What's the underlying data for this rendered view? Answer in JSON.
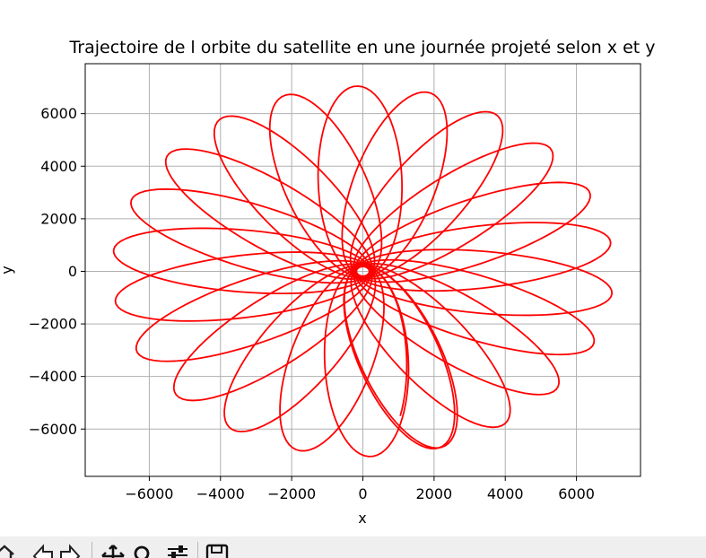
{
  "window": {
    "toolbar_icons": [
      "home-icon",
      "back-icon",
      "forward-icon",
      "pan-icon",
      "zoom-icon",
      "configure-subplots-icon",
      "save-icon"
    ]
  },
  "chart_data": {
    "type": "line",
    "title": "Trajectoire de l orbite du satellite en une journée projeté selon x et y",
    "xlabel": "x",
    "ylabel": "y",
    "xlim": [
      -7800,
      7800
    ],
    "ylim": [
      -7800,
      7900
    ],
    "xticks": [
      -6000,
      -4000,
      -2000,
      0,
      2000,
      4000,
      6000
    ],
    "yticks": [
      -6000,
      -4000,
      -2000,
      0,
      2000,
      4000,
      6000
    ],
    "xtick_labels": [
      "−6000",
      "−4000",
      "−2000",
      "0",
      "2000",
      "4000",
      "6000"
    ],
    "ytick_labels": [
      "−6000",
      "−4000",
      "−2000",
      "0",
      "2000",
      "4000",
      "6000"
    ],
    "grid": true,
    "legend": "none",
    "series": [
      {
        "color": "#ff0000",
        "start": [
          1050,
          -5500
        ],
        "end": [
          -7000,
          -1000
        ],
        "apoapsis_radius": 7050,
        "periapsis_radius": 180,
        "revolutions": 24,
        "precession_deg_per_revolution": 16.4
      }
    ]
  }
}
